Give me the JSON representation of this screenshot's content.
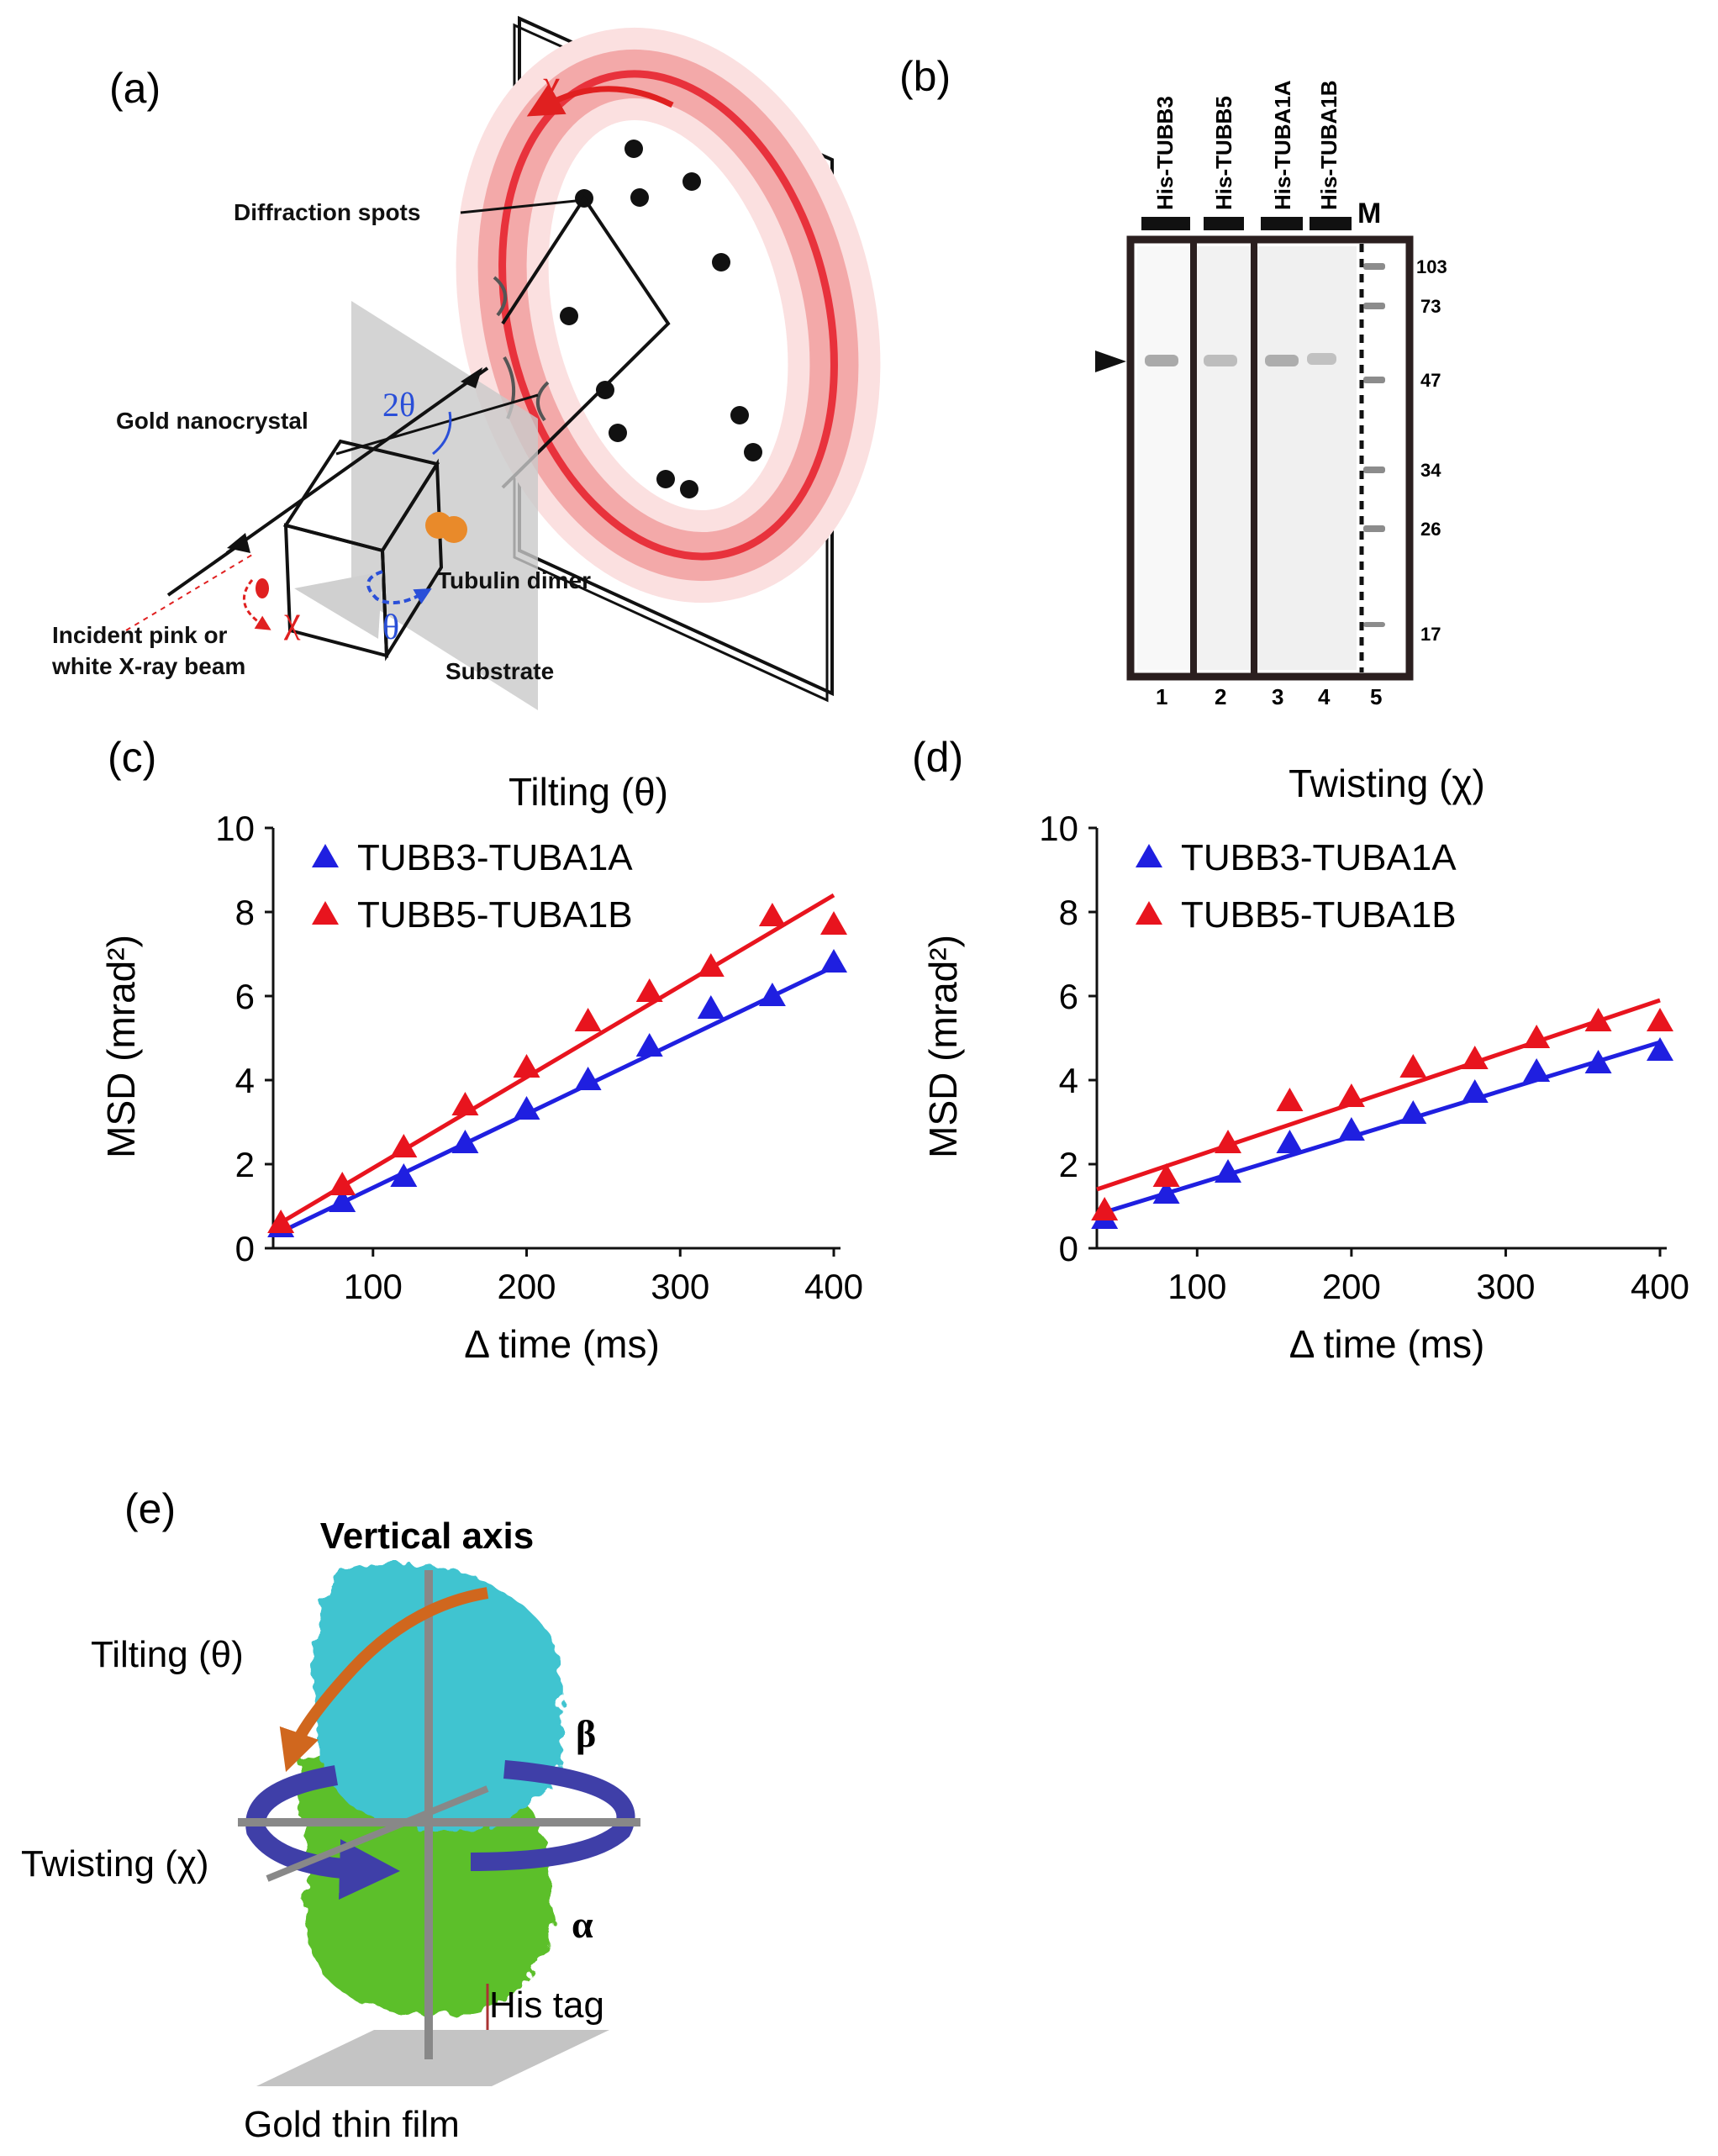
{
  "panels": {
    "a": {
      "label": "(a)",
      "texts": {
        "chi_top": "χ",
        "diffraction_spots": "Diffraction spots",
        "two_theta": "2θ",
        "gold_nanocrystal": "Gold nanocrystal",
        "tubulin_dimer": "Tubulin dimer",
        "theta": "θ",
        "chi_bottom": "χ",
        "incident_line1": "Incident pink or",
        "incident_line2": "white X-ray beam",
        "substrate": "Substrate"
      },
      "colors": {
        "ring": "#e8323c",
        "ring_halo": "#f6b3b3",
        "chi": "#e02020",
        "theta": "#2a4fd8",
        "tubulin": "#e98a2a"
      }
    },
    "b": {
      "label": "(b)",
      "lanes_top": [
        "His-TUBB3",
        "His-TUBB5",
        "His-TUBA1A",
        "His-TUBA1B"
      ],
      "marker_label": "M",
      "marker_weights": [
        "103",
        "73",
        "47",
        "34",
        "26",
        "17"
      ],
      "lane_numbers": [
        "1",
        "2",
        "3",
        "4",
        "5"
      ]
    },
    "e": {
      "label": "(e)",
      "vertical_axis": "Vertical axis",
      "tilting": "Tilting (θ)",
      "twisting": "Twisting (χ)",
      "beta": "β",
      "alpha": "α",
      "his_tag": "His tag",
      "gold_film": "Gold thin film",
      "colors": {
        "beta": "#3fc4d0",
        "alpha": "#5cbf2a",
        "tilt_arrow": "#d0671e",
        "twist_arrow": "#3f3fa8"
      }
    }
  },
  "chart_data": [
    {
      "id": "c",
      "panel_label": "(c)",
      "type": "scatter",
      "title": "Tilting (θ)",
      "xlabel": "Δ time (ms)",
      "ylabel": "MSD (mrad²)",
      "xlim": [
        35,
        400
      ],
      "ylim": [
        0,
        10
      ],
      "xticks": [
        100,
        200,
        300,
        400
      ],
      "yticks": [
        0,
        2,
        4,
        6,
        8,
        10
      ],
      "legend_position": "top-left",
      "grid": false,
      "series": [
        {
          "name": "TUBB3-TUBA1A",
          "color": "#1f1fe0",
          "x": [
            40,
            80,
            120,
            160,
            200,
            240,
            280,
            320,
            360,
            400
          ],
          "y": [
            0.5,
            1.1,
            1.7,
            2.5,
            3.3,
            4.0,
            4.8,
            5.7,
            6.0,
            6.8
          ],
          "fit": [
            [
              35,
              0.3
            ],
            [
              400,
              6.7
            ]
          ]
        },
        {
          "name": "TUBB5-TUBA1B",
          "color": "#e8141e",
          "x": [
            40,
            80,
            120,
            160,
            200,
            240,
            280,
            320,
            360,
            400
          ],
          "y": [
            0.6,
            1.5,
            2.4,
            3.4,
            4.3,
            5.4,
            6.1,
            6.7,
            7.9,
            7.7
          ],
          "fit": [
            [
              35,
              0.5
            ],
            [
              400,
              8.4
            ]
          ]
        }
      ]
    },
    {
      "id": "d",
      "panel_label": "(d)",
      "type": "scatter",
      "title": "Twisting (χ)",
      "xlabel": "Δ time (ms)",
      "ylabel": "MSD (mrad²)",
      "xlim": [
        35,
        400
      ],
      "ylim": [
        0,
        10
      ],
      "xticks": [
        100,
        200,
        300,
        400
      ],
      "yticks": [
        0,
        2,
        4,
        6,
        8,
        10
      ],
      "legend_position": "top-left",
      "grid": false,
      "series": [
        {
          "name": "TUBB3-TUBA1A",
          "color": "#1f1fe0",
          "x": [
            40,
            80,
            120,
            160,
            200,
            240,
            280,
            320,
            360,
            400
          ],
          "y": [
            0.7,
            1.3,
            1.8,
            2.5,
            2.8,
            3.2,
            3.7,
            4.2,
            4.4,
            4.7
          ],
          "fit": [
            [
              35,
              0.8
            ],
            [
              400,
              4.9
            ]
          ]
        },
        {
          "name": "TUBB5-TUBA1B",
          "color": "#e8141e",
          "x": [
            40,
            80,
            120,
            160,
            200,
            240,
            280,
            320,
            360,
            400
          ],
          "y": [
            0.9,
            1.7,
            2.5,
            3.5,
            3.6,
            4.3,
            4.5,
            5.0,
            5.4,
            5.4
          ],
          "fit": [
            [
              35,
              1.4
            ],
            [
              400,
              5.9
            ]
          ]
        }
      ]
    }
  ]
}
